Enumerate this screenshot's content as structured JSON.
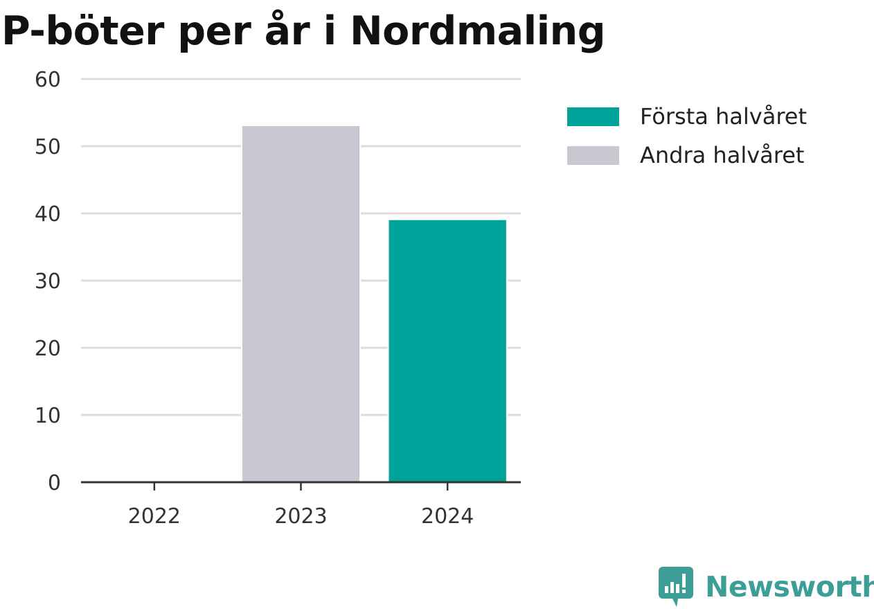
{
  "chart_data": {
    "type": "bar",
    "title": "P-böter per år i Nordmaling",
    "categories": [
      "2022",
      "2023",
      "2024"
    ],
    "series": [
      {
        "name": "Första halvåret",
        "color": "#00a39a",
        "values": [
          0,
          0,
          39
        ]
      },
      {
        "name": "Andra halvåret",
        "color": "#c8c7d2",
        "values": [
          0,
          53,
          0
        ]
      }
    ],
    "stacked": true,
    "yticks": [
      0,
      10,
      20,
      30,
      40,
      50,
      60
    ],
    "ylim": [
      0,
      60
    ],
    "xlabel": "",
    "ylabel": "",
    "grid": true,
    "legend_position": "right"
  },
  "brand": {
    "name": "Newsworthy",
    "icon": "newsworthy-logo-icon",
    "color": "#3d9e97"
  }
}
